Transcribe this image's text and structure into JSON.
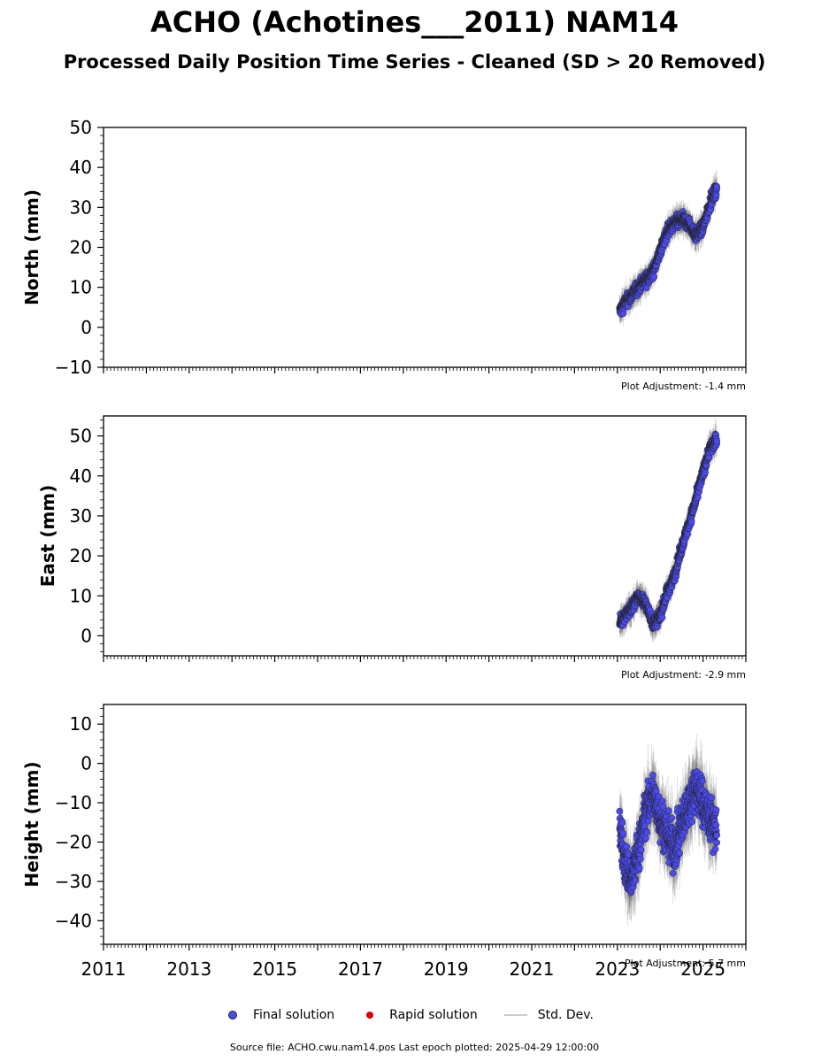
{
  "title": "ACHO (Achotines___2011) NAM14",
  "subtitle": "Processed Daily Position Time Series - Cleaned (SD > 20 Removed)",
  "legend": {
    "final": "Final solution",
    "rapid": "Rapid solution",
    "std": "Std. Dev."
  },
  "footer": "Source file: ACHO.cwu.nam14.pos  Last epoch plotted: 2025-04-29 12:00:00",
  "colors": {
    "final_marker": "#4a4af0",
    "rapid_marker": "#dd0000",
    "std_dev": "#cccccc"
  },
  "chart_data": [
    {
      "type": "scatter",
      "ylabel": "North (mm)",
      "ylim": [
        -10,
        50
      ],
      "yticks": [
        -10,
        0,
        10,
        20,
        30,
        40,
        50
      ],
      "xlim": [
        "2011-01-01",
        "2026-01-01"
      ],
      "adjustment_label": "Plot Adjustment: -1.4 mm",
      "series": [
        {
          "name": "Final solution",
          "x": [
            "2023-01-20",
            "2023-03-01",
            "2023-05-01",
            "2023-07-01",
            "2023-09-01",
            "2023-11-01",
            "2024-01-01",
            "2024-03-01",
            "2024-05-01",
            "2024-07-01",
            "2024-09-01",
            "2024-11-01",
            "2025-01-01",
            "2025-03-01",
            "2025-04-29"
          ],
          "y": [
            4,
            6,
            8,
            10,
            12,
            14,
            19,
            24,
            26,
            27,
            26,
            23,
            25,
            31,
            35
          ]
        }
      ]
    },
    {
      "type": "scatter",
      "ylabel": "East (mm)",
      "ylim": [
        -5,
        55
      ],
      "yticks": [
        0,
        10,
        20,
        30,
        40,
        50
      ],
      "xlim": [
        "2011-01-01",
        "2026-01-01"
      ],
      "adjustment_label": "Plot Adjustment: -2.9 mm",
      "series": [
        {
          "name": "Final solution",
          "x": [
            "2023-01-20",
            "2023-03-01",
            "2023-05-01",
            "2023-07-01",
            "2023-09-01",
            "2023-11-01",
            "2024-01-01",
            "2024-03-01",
            "2024-05-01",
            "2024-07-01",
            "2024-09-01",
            "2024-11-01",
            "2025-01-01",
            "2025-03-01",
            "2025-04-29"
          ],
          "y": [
            3,
            5,
            7,
            10,
            8,
            3,
            5,
            11,
            15,
            22,
            28,
            34,
            41,
            47,
            49
          ]
        }
      ]
    },
    {
      "type": "scatter",
      "ylabel": "Height (mm)",
      "ylim": [
        -46,
        15
      ],
      "yticks": [
        -40,
        -30,
        -20,
        -10,
        0,
        10
      ],
      "xlim": [
        "2011-01-01",
        "2026-01-01"
      ],
      "xticklabels": [
        "2011",
        "2013",
        "2015",
        "2017",
        "2019",
        "2021",
        "2023",
        "2025"
      ],
      "adjustment_label": "Plot Adjustment: 5.7 mm",
      "series": [
        {
          "name": "Final solution",
          "x": [
            "2023-01-20",
            "2023-03-01",
            "2023-05-01",
            "2023-07-01",
            "2023-09-01",
            "2023-11-01",
            "2024-01-01",
            "2024-03-01",
            "2024-05-01",
            "2024-07-01",
            "2024-09-01",
            "2024-11-01",
            "2025-01-01",
            "2025-03-01",
            "2025-04-29"
          ],
          "y": [
            -15,
            -25,
            -30,
            -22,
            -12,
            -8,
            -14,
            -18,
            -22,
            -16,
            -10,
            -6,
            -10,
            -14,
            -17
          ]
        }
      ]
    }
  ]
}
